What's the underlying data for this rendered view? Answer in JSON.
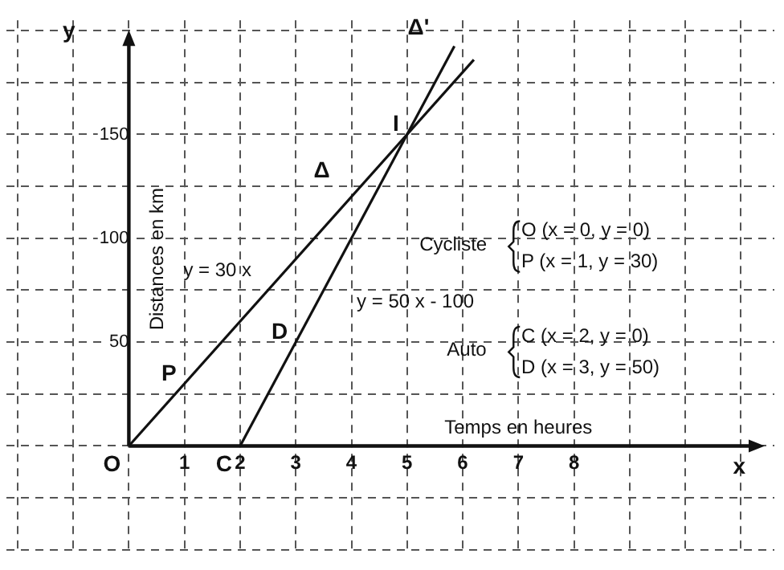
{
  "chart_data": {
    "type": "line",
    "xlabel": "Temps en heures",
    "ylabel": "Distances en km",
    "series": [
      {
        "color": "#111111",
        "x": [
          0,
          6.2
        ],
        "values": [
          0,
          186
        ]
      },
      {
        "color": "#111111",
        "x": [
          2,
          5.85
        ],
        "values": [
          0,
          192.5
        ]
      }
    ],
    "xlim": [
      -2.2,
      11.6
    ],
    "ylim": [
      -50,
      205
    ],
    "xticks": [
      {
        "value": -2,
        "label": null
      },
      {
        "value": -1,
        "label": null
      },
      {
        "value": 0,
        "label": null
      },
      1,
      2,
      3,
      4,
      5,
      6,
      7,
      8,
      {
        "value": 9,
        "label": null
      },
      {
        "value": 10,
        "label": null
      },
      {
        "value": 11,
        "label": null
      }
    ],
    "yticks": [
      {
        "value": -50,
        "label": null
      },
      {
        "value": -25,
        "label": null
      },
      {
        "value": 0,
        "label": null
      },
      {
        "value": 25,
        "label": null
      },
      50,
      {
        "value": 75,
        "label": null
      },
      100,
      {
        "value": 125,
        "label": null
      },
      150,
      {
        "value": 175,
        "label": null
      },
      {
        "value": 200,
        "label": null
      }
    ],
    "grid": true,
    "line_style": "solid",
    "marker": "none",
    "legend": false,
    "annotations": [
      {
        "text": "O",
        "x": 0,
        "y": 0
      },
      {
        "text": "P",
        "x": 1,
        "y": 30
      },
      {
        "text": "C",
        "x": 2,
        "y": 0
      },
      {
        "text": "D",
        "x": 3,
        "y": 50
      },
      {
        "text": "I",
        "x": 5,
        "y": 150
      },
      "Δ",
      "Δ'",
      "y = 30 x",
      "y = 50 x - 100",
      "x",
      "y",
      "Cycliste",
      "O (x = 0, y = 0)",
      "P (x = 1, y = 30)",
      "Auto",
      "C (x = 2, y = 0)",
      "D (x = 3, y = 50)"
    ]
  }
}
